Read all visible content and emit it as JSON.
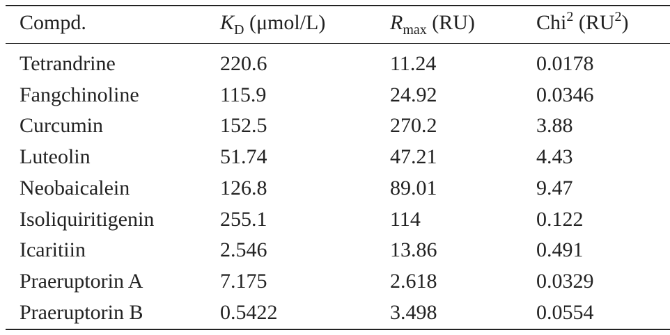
{
  "table": {
    "header": [
      [
        {
          "text": "Compd."
        }
      ],
      [
        {
          "text": "K",
          "style": "it"
        },
        {
          "text": "D",
          "style": "sub"
        },
        {
          "text": " (μmol/L)"
        }
      ],
      [
        {
          "text": "R",
          "style": "it"
        },
        {
          "text": "max",
          "style": "sub"
        },
        {
          "text": " (RU)"
        }
      ],
      [
        {
          "text": "Chi"
        },
        {
          "text": "2",
          "style": "sup"
        },
        {
          "text": " (RU"
        },
        {
          "text": "2",
          "style": "sup"
        },
        {
          "text": ")"
        }
      ]
    ],
    "rows": [
      [
        "Tetrandrine",
        "220.6",
        "11.24",
        "0.0178"
      ],
      [
        "Fangchinoline",
        "115.9",
        "24.92",
        "0.0346"
      ],
      [
        "Curcumin",
        "152.5",
        "270.2",
        "3.88"
      ],
      [
        "Luteolin",
        "51.74",
        "47.21",
        "4.43"
      ],
      [
        "Neobaicalein",
        "126.8",
        "89.01",
        "9.47"
      ],
      [
        "Isoliquiritigenin",
        "255.1",
        "114",
        "0.122"
      ],
      [
        "Icaritiin",
        "2.546",
        "13.86",
        "0.491"
      ],
      [
        "Praeruptorin A",
        "7.175",
        "2.618",
        "0.0329"
      ],
      [
        "Praeruptorin B",
        "0.5422",
        "3.498",
        "0.0554"
      ]
    ]
  }
}
